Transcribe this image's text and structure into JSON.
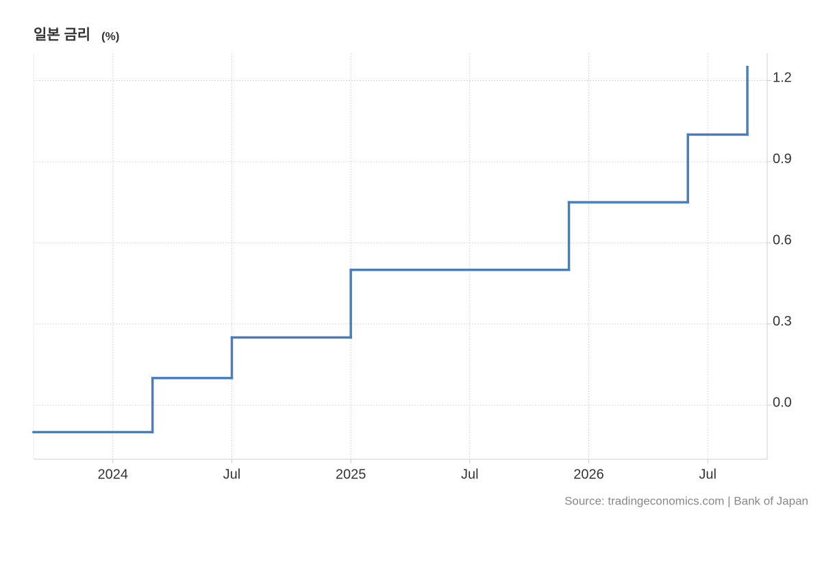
{
  "chart_data": {
    "type": "step-line",
    "title": "일본 금리",
    "unit_label": "(%)",
    "source": "Source: tradingeconomics.com | Bank of Japan",
    "x": [
      "2023-09",
      "2024-03",
      "2024-07",
      "2025-01",
      "2025-12",
      "2026-06",
      "2026-09"
    ],
    "series": [
      {
        "name": "일본 금리",
        "color": "#4a7ebb",
        "values": [
          -0.1,
          0.1,
          0.25,
          0.5,
          0.75,
          1.0,
          1.25
        ]
      }
    ],
    "xlim": [
      "2023-09",
      "2026-10"
    ],
    "xticks": [
      {
        "value": "2024-01",
        "label": "2024"
      },
      {
        "value": "2024-07",
        "label": "Jul"
      },
      {
        "value": "2025-01",
        "label": "2025"
      },
      {
        "value": "2025-07",
        "label": "Jul"
      },
      {
        "value": "2026-01",
        "label": "2026"
      },
      {
        "value": "2026-07",
        "label": "Jul"
      }
    ],
    "ylim": [
      -0.2,
      1.3
    ],
    "yticks": [
      {
        "value": 0,
        "label": "0.0"
      },
      0.3,
      0.6,
      0.9,
      1.2
    ],
    "grid": true
  }
}
